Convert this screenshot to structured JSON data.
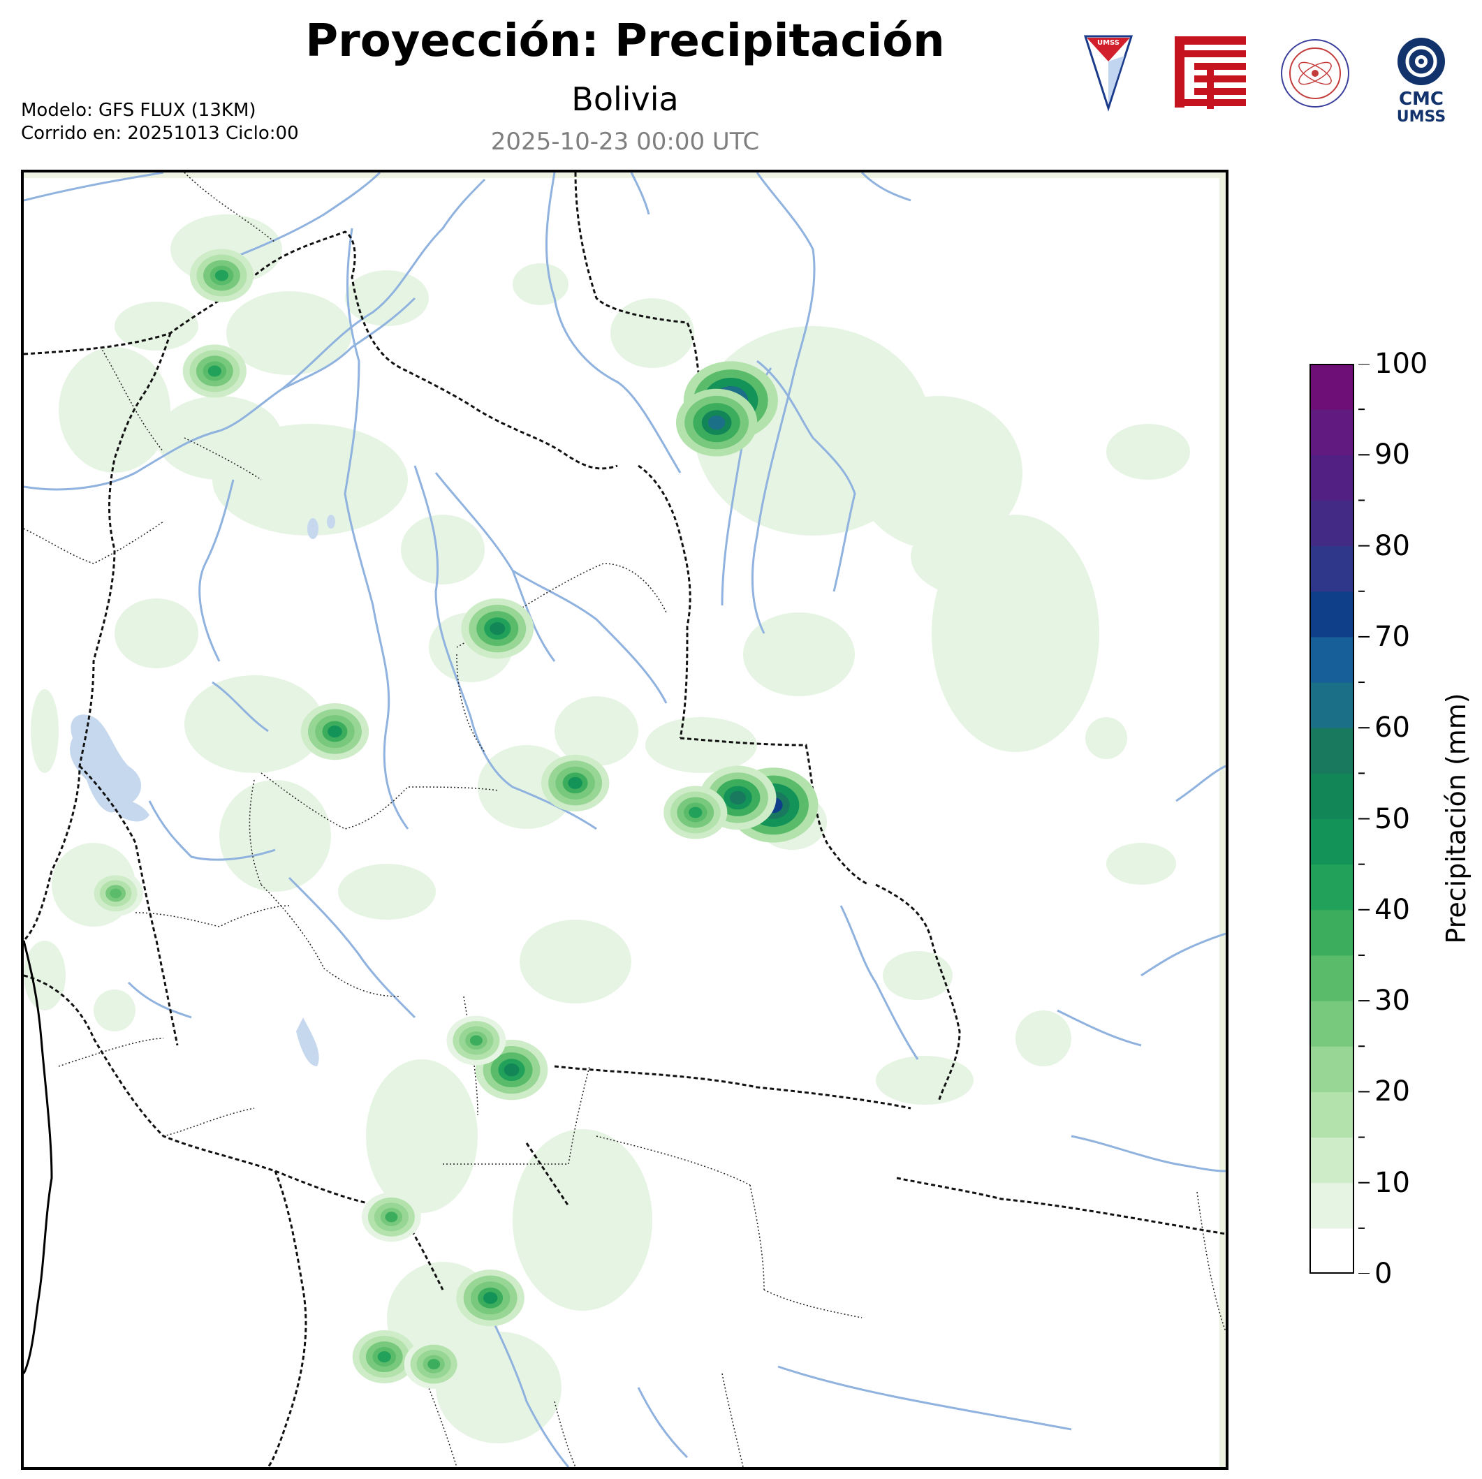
{
  "header": {
    "title": "Proyección: Precipitación",
    "subtitle": "Bolivia",
    "datetime": "2025-10-23 00:00 UTC",
    "model_line": "Modelo: GFS FLUX (13KM)",
    "run_line": "Corrido en: 20251013 Ciclo:00"
  },
  "logos": [
    {
      "name": "umss-shield-logo",
      "text": "UMSS"
    },
    {
      "name": "fcyt-red-logo",
      "text": ""
    },
    {
      "name": "departamento-fisica-seal-logo",
      "text": "DEPARTAMENTO DE FÍSICA"
    },
    {
      "name": "cmc-umss-logo",
      "text": "CMC UMSS"
    }
  ],
  "colorbar": {
    "label": "Precipitación (mm)",
    "min": 0,
    "max": 100,
    "tick_labels": [
      "0",
      "10",
      "20",
      "30",
      "40",
      "50",
      "60",
      "70",
      "80",
      "90",
      "100"
    ],
    "levels": [
      0,
      5,
      10,
      15,
      20,
      25,
      30,
      35,
      40,
      45,
      50,
      55,
      60,
      65,
      70,
      75,
      80,
      85,
      90,
      95,
      100
    ],
    "colors": [
      "#ffffff",
      "#e6f4e3",
      "#cfecc9",
      "#b4e2ad",
      "#97d694",
      "#78c87d",
      "#5abc6b",
      "#3bad5d",
      "#21a15a",
      "#139357",
      "#138657",
      "#18795f",
      "#1b6f86",
      "#175f98",
      "#103f8a",
      "#2e3789",
      "#432a84",
      "#522083",
      "#611a80",
      "#6e0f78"
    ]
  },
  "map": {
    "region": "Bolivia",
    "colors": {
      "river": "#8fb2df",
      "lake": "#c6d8ee",
      "border": "#000000",
      "land_margin": "#eef2e0"
    },
    "precip_cells": [
      {
        "lat": -10.3,
        "lon": -63.0,
        "value": 75
      },
      {
        "lat": -10.6,
        "lon": -63.2,
        "value": 60
      },
      {
        "lat": -15.8,
        "lon": -62.4,
        "value": 70
      },
      {
        "lat": -15.7,
        "lon": -62.9,
        "value": 55
      },
      {
        "lat": -15.9,
        "lon": -63.5,
        "value": 40
      },
      {
        "lat": -15.5,
        "lon": -65.2,
        "value": 45
      },
      {
        "lat": -13.4,
        "lon": -66.3,
        "value": 50
      },
      {
        "lat": -14.8,
        "lon": -68.6,
        "value": 45
      },
      {
        "lat": -19.4,
        "lon": -66.1,
        "value": 50
      },
      {
        "lat": -19.0,
        "lon": -66.6,
        "value": 35
      },
      {
        "lat": -22.5,
        "lon": -66.4,
        "value": 45
      },
      {
        "lat": -21.4,
        "lon": -67.8,
        "value": 35
      },
      {
        "lat": -23.3,
        "lon": -67.9,
        "value": 40
      },
      {
        "lat": -23.4,
        "lon": -67.2,
        "value": 35
      },
      {
        "lat": -8.6,
        "lon": -70.2,
        "value": 40
      },
      {
        "lat": -9.9,
        "lon": -70.3,
        "value": 40
      },
      {
        "lat": -17.0,
        "lon": -71.7,
        "value": 30
      }
    ]
  }
}
